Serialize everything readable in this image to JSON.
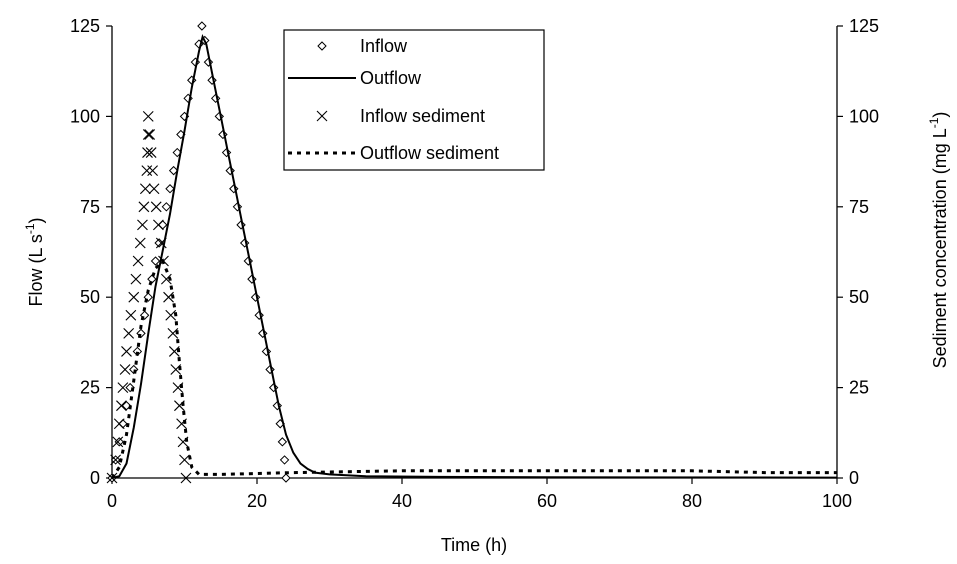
{
  "chart_data": {
    "type": "line",
    "title": "",
    "xlabel": "Time (h)",
    "ylabel": {
      "main": "Flow (L s",
      "sup1": "-1",
      "close": ")"
    },
    "y2label": {
      "main": "Sediment concentration (mg L",
      "sup1": "-1",
      "close": ")"
    },
    "xlim": [
      0,
      100
    ],
    "ylim": [
      0,
      125
    ],
    "y2lim": [
      0,
      125
    ],
    "xticks": [
      "0",
      "20",
      "40",
      "60",
      "80",
      "100"
    ],
    "yticks": [
      "0",
      "25",
      "50",
      "75",
      "100",
      "125"
    ],
    "y2ticks": [
      "0",
      "25",
      "50",
      "75",
      "100",
      "125"
    ],
    "grid": false,
    "legend_position": "top-center",
    "legend": [
      "Inflow",
      "Outflow",
      "Inflow sediment",
      "Outflow sediment"
    ],
    "series": [
      {
        "name": "Inflow",
        "axis": "left",
        "style": "diamond-markers",
        "points": [
          [
            0,
            0
          ],
          [
            0.5,
            5
          ],
          [
            1,
            10
          ],
          [
            1.5,
            15
          ],
          [
            2,
            20
          ],
          [
            2.5,
            25
          ],
          [
            3,
            30
          ],
          [
            3.5,
            35
          ],
          [
            4,
            40
          ],
          [
            4.5,
            45
          ],
          [
            5,
            50
          ],
          [
            5.5,
            55
          ],
          [
            6,
            60
          ],
          [
            6.5,
            65
          ],
          [
            7,
            70
          ],
          [
            7.5,
            75
          ],
          [
            8,
            80
          ],
          [
            8.5,
            85
          ],
          [
            9,
            90
          ],
          [
            9.5,
            95
          ],
          [
            10,
            100
          ],
          [
            10.5,
            105
          ],
          [
            11,
            110
          ],
          [
            11.5,
            115
          ],
          [
            12,
            120
          ],
          [
            12.4,
            125
          ],
          [
            12.8,
            121
          ],
          [
            13.3,
            115
          ],
          [
            13.8,
            110
          ],
          [
            14.3,
            105
          ],
          [
            14.8,
            100
          ],
          [
            15.3,
            95
          ],
          [
            15.8,
            90
          ],
          [
            16.3,
            85
          ],
          [
            16.8,
            80
          ],
          [
            17.3,
            75
          ],
          [
            17.8,
            70
          ],
          [
            18.3,
            65
          ],
          [
            18.8,
            60
          ],
          [
            19.3,
            55
          ],
          [
            19.8,
            50
          ],
          [
            20.3,
            45
          ],
          [
            20.8,
            40
          ],
          [
            21.3,
            35
          ],
          [
            21.8,
            30
          ],
          [
            22.3,
            25
          ],
          [
            22.8,
            20
          ],
          [
            23.2,
            15
          ],
          [
            23.5,
            10
          ],
          [
            23.8,
            5
          ],
          [
            24,
            0
          ]
        ]
      },
      {
        "name": "Outflow",
        "axis": "left",
        "style": "solid-line",
        "points": [
          [
            0,
            0
          ],
          [
            1,
            0.5
          ],
          [
            2,
            4
          ],
          [
            3,
            14
          ],
          [
            4,
            26
          ],
          [
            5,
            40
          ],
          [
            6,
            53
          ],
          [
            7,
            63
          ],
          [
            8,
            73
          ],
          [
            9,
            85
          ],
          [
            10,
            96
          ],
          [
            11,
            108
          ],
          [
            12,
            118
          ],
          [
            12.5,
            122
          ],
          [
            13,
            120
          ],
          [
            14,
            110
          ],
          [
            15,
            100
          ],
          [
            16,
            90
          ],
          [
            17,
            80
          ],
          [
            18,
            70
          ],
          [
            19,
            60
          ],
          [
            20,
            50
          ],
          [
            21,
            40
          ],
          [
            22,
            30
          ],
          [
            23,
            20
          ],
          [
            24,
            12
          ],
          [
            25,
            7
          ],
          [
            26,
            4
          ],
          [
            27,
            2.5
          ],
          [
            28,
            1.5
          ],
          [
            30,
            1
          ],
          [
            35,
            0.5
          ],
          [
            45,
            0.3
          ],
          [
            60,
            0.2
          ],
          [
            100,
            0.1
          ]
        ]
      },
      {
        "name": "Inflow sediment",
        "axis": "right",
        "style": "x-markers",
        "points": [
          [
            0,
            0
          ],
          [
            0.5,
            5
          ],
          [
            0.8,
            10
          ],
          [
            1,
            15
          ],
          [
            1.3,
            20
          ],
          [
            1.5,
            25
          ],
          [
            1.8,
            30
          ],
          [
            2,
            35
          ],
          [
            2.3,
            40
          ],
          [
            2.6,
            45
          ],
          [
            3,
            50
          ],
          [
            3.3,
            55
          ],
          [
            3.6,
            60
          ],
          [
            3.9,
            65
          ],
          [
            4.2,
            70
          ],
          [
            4.4,
            75
          ],
          [
            4.6,
            80
          ],
          [
            4.8,
            85
          ],
          [
            4.9,
            90
          ],
          [
            5,
            95
          ],
          [
            5,
            100
          ],
          [
            5.2,
            95
          ],
          [
            5.4,
            90
          ],
          [
            5.6,
            85
          ],
          [
            5.8,
            80
          ],
          [
            6.1,
            75
          ],
          [
            6.4,
            70
          ],
          [
            6.8,
            65
          ],
          [
            7.1,
            60
          ],
          [
            7.5,
            55
          ],
          [
            7.8,
            50
          ],
          [
            8.1,
            45
          ],
          [
            8.4,
            40
          ],
          [
            8.6,
            35
          ],
          [
            8.8,
            30
          ],
          [
            9.1,
            25
          ],
          [
            9.3,
            20
          ],
          [
            9.6,
            15
          ],
          [
            9.8,
            10
          ],
          [
            10,
            5
          ],
          [
            10.2,
            0
          ]
        ]
      },
      {
        "name": "Outflow sediment",
        "axis": "right",
        "style": "dotted-line",
        "points": [
          [
            0,
            0
          ],
          [
            1,
            3
          ],
          [
            2,
            12
          ],
          [
            3,
            27
          ],
          [
            4,
            42
          ],
          [
            5,
            52
          ],
          [
            6,
            58
          ],
          [
            7,
            60
          ],
          [
            8,
            55
          ],
          [
            8.8,
            45
          ],
          [
            9.3,
            32
          ],
          [
            9.8,
            20
          ],
          [
            10.3,
            10
          ],
          [
            11,
            3
          ],
          [
            12,
            1
          ],
          [
            15,
            1
          ],
          [
            25,
            1.5
          ],
          [
            40,
            2
          ],
          [
            60,
            2
          ],
          [
            80,
            2
          ],
          [
            90,
            1.5
          ],
          [
            100,
            1.5
          ]
        ]
      }
    ]
  }
}
